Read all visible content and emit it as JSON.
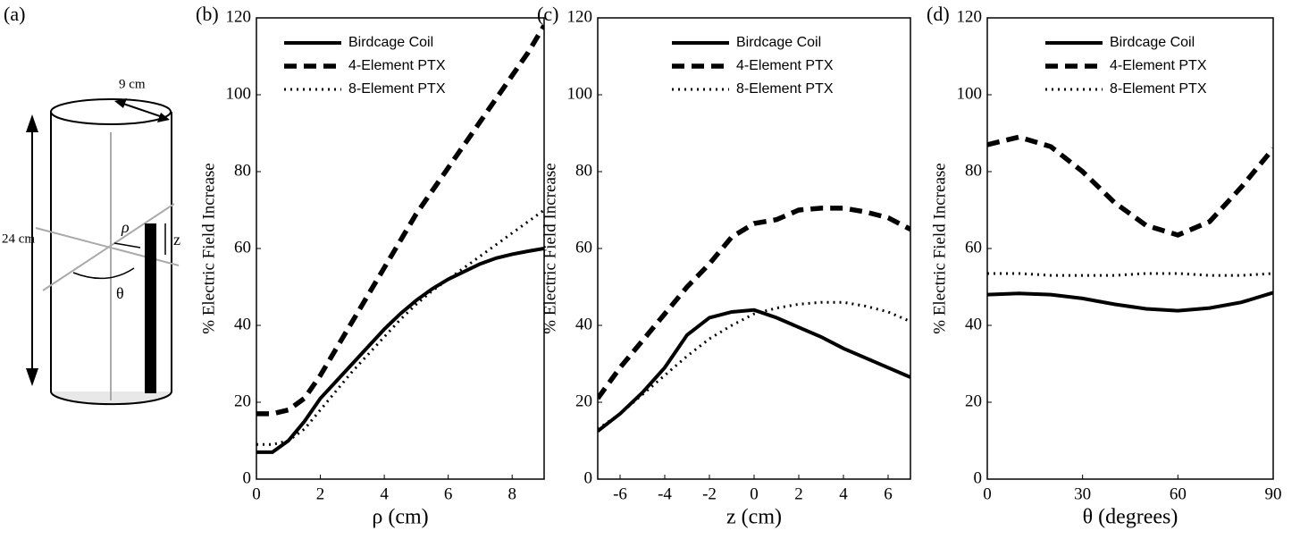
{
  "panel_a": {
    "label": "(a)",
    "diameter": "9 cm",
    "height": "24 cm",
    "rho": "ρ",
    "z": "z",
    "theta": "θ"
  },
  "chart_data": [
    {
      "type": "line",
      "label": "(b)",
      "xlabel": "ρ (cm)",
      "ylabel": "% Electric Field Increase",
      "x": [
        0,
        0.5,
        1,
        1.5,
        2,
        2.5,
        3,
        3.5,
        4,
        4.5,
        5,
        5.5,
        6,
        6.5,
        7,
        7.5,
        8,
        8.5,
        9
      ],
      "series": [
        {
          "name": "Birdcage Coil",
          "color": "#000000",
          "style": "solid",
          "values": [
            7,
            7,
            10,
            15,
            21,
            25.5,
            30,
            34.5,
            39,
            43,
            46.5,
            49.5,
            52,
            54,
            56,
            57.5,
            58.5,
            59.3,
            60
          ]
        },
        {
          "name": "4-Element PTX",
          "color": "#000000",
          "style": "dashed",
          "values": [
            17,
            17,
            18,
            21,
            27,
            34,
            41,
            48,
            55,
            62,
            69,
            75,
            81,
            87,
            93,
            99,
            105,
            111,
            118
          ]
        },
        {
          "name": "8-Element PTX",
          "color": "#000000",
          "style": "dotted",
          "values": [
            9,
            9,
            10,
            13,
            18,
            23,
            28,
            32.5,
            37,
            41.5,
            45.5,
            49,
            52,
            55,
            58,
            61,
            64,
            67,
            70
          ]
        }
      ],
      "xlim": [
        0,
        9
      ],
      "xticks": [
        0,
        2,
        4,
        6,
        8
      ],
      "ylim": [
        0,
        120
      ],
      "yticks": [
        0,
        20,
        40,
        60,
        80,
        100,
        120
      ]
    },
    {
      "type": "line",
      "label": "(c)",
      "xlabel": "z (cm)",
      "ylabel": "% Electric Field Increase",
      "x": [
        -7,
        -6,
        -5,
        -4,
        -3,
        -2,
        -1,
        0,
        1,
        2,
        3,
        4,
        5,
        6,
        7
      ],
      "series": [
        {
          "name": "Birdcage Coil",
          "color": "#000000",
          "style": "solid",
          "values": [
            12.5,
            17,
            22.5,
            29,
            37.5,
            42,
            43.5,
            44,
            42,
            39.5,
            37,
            34,
            31.5,
            29,
            26.5
          ]
        },
        {
          "name": "4-Element PTX",
          "color": "#000000",
          "style": "dashed",
          "values": [
            21,
            29,
            36,
            43,
            50,
            56,
            63,
            66.5,
            67.5,
            70,
            70.5,
            70.5,
            69.5,
            68,
            65
          ]
        },
        {
          "name": "8-Element PTX",
          "color": "#000000",
          "style": "dotted",
          "values": [
            13,
            17,
            22,
            27,
            32,
            36.5,
            40,
            43,
            44.5,
            45.5,
            46,
            46,
            45,
            43.5,
            41
          ]
        }
      ],
      "xlim": [
        -7,
        7
      ],
      "xticks": [
        -6,
        -4,
        -2,
        0,
        2,
        4,
        6
      ],
      "ylim": [
        0,
        120
      ],
      "yticks": [
        0,
        20,
        40,
        60,
        80,
        100,
        120
      ]
    },
    {
      "type": "line",
      "label": "(d)",
      "xlabel": "θ (degrees)",
      "ylabel": "% Electric Field Increase",
      "x": [
        0,
        10,
        20,
        30,
        40,
        50,
        60,
        70,
        80,
        90
      ],
      "series": [
        {
          "name": "Birdcage Coil",
          "color": "#000000",
          "style": "solid",
          "values": [
            48,
            48.3,
            48,
            47,
            45.5,
            44.3,
            43.8,
            44.5,
            46,
            48.5
          ]
        },
        {
          "name": "4-Element PTX",
          "color": "#000000",
          "style": "dashed",
          "values": [
            87,
            89,
            86.5,
            80,
            72,
            66,
            63.5,
            67,
            76,
            86
          ]
        },
        {
          "name": "8-Element PTX",
          "color": "#000000",
          "style": "dotted",
          "values": [
            53.5,
            53.5,
            53,
            53,
            53,
            53.5,
            53.5,
            53,
            53,
            53.5
          ]
        }
      ],
      "xlim": [
        0,
        90
      ],
      "xticks": [
        0,
        30,
        60,
        90
      ],
      "ylim": [
        0,
        120
      ],
      "yticks": [
        0,
        20,
        40,
        60,
        80,
        100,
        120
      ]
    }
  ]
}
